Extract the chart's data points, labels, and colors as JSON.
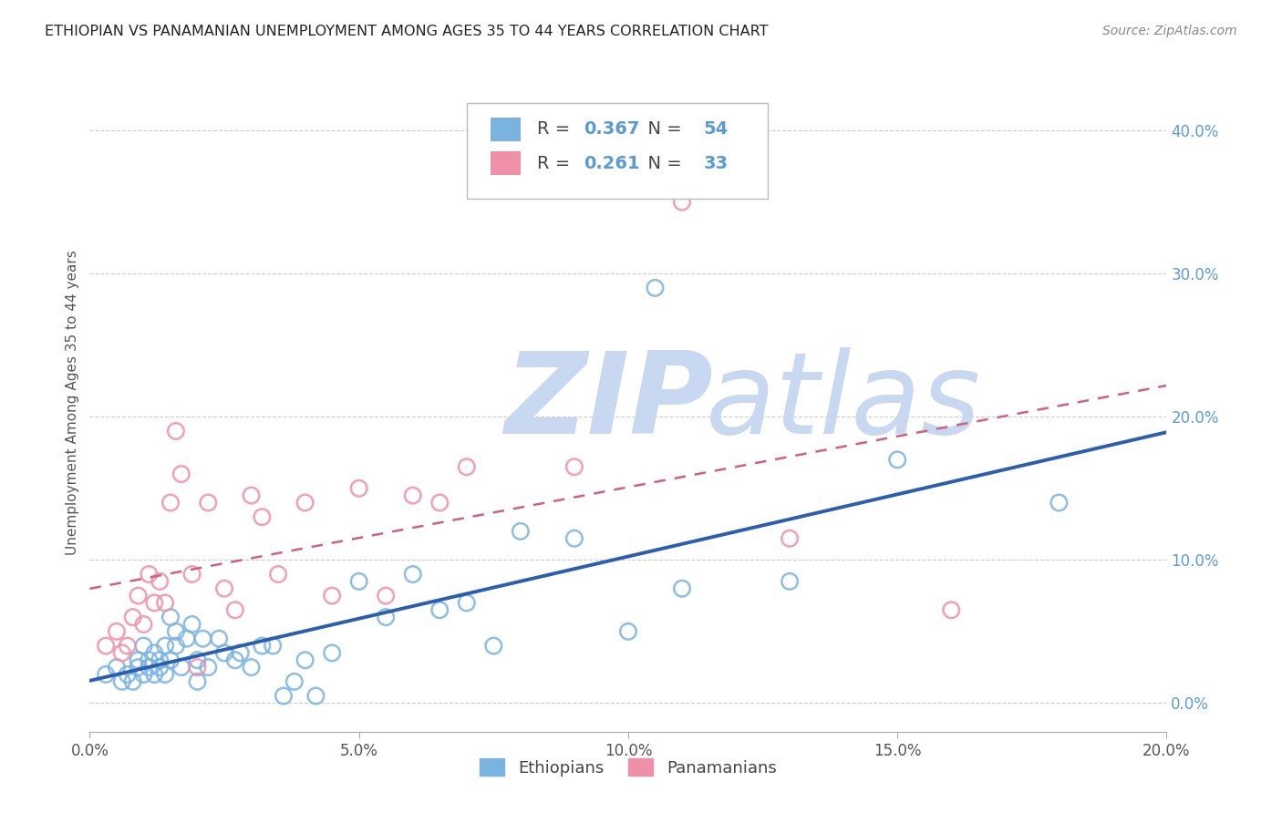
{
  "title": "ETHIOPIAN VS PANAMANIAN UNEMPLOYMENT AMONG AGES 35 TO 44 YEARS CORRELATION CHART",
  "source": "Source: ZipAtlas.com",
  "ylabel": "Unemployment Among Ages 35 to 44 years",
  "xlim": [
    0.0,
    0.2
  ],
  "ylim": [
    -0.02,
    0.44
  ],
  "right_yticks": [
    0.0,
    0.1,
    0.2,
    0.3,
    0.4
  ],
  "right_yticklabels": [
    "0.0%",
    "10.0%",
    "20.0%",
    "30.0%",
    "40.0%"
  ],
  "xticks": [
    0.0,
    0.05,
    0.1,
    0.15,
    0.2
  ],
  "xticklabels": [
    "0.0%",
    "5.0%",
    "10.0%",
    "15.0%",
    "20.0%"
  ],
  "legend_ethiopian_r": "0.367",
  "legend_ethiopian_n": "54",
  "legend_panamanian_r": "0.261",
  "legend_panamanian_n": "33",
  "ethiopian_color": "#7ab3e0",
  "panamanian_color": "#f090a8",
  "ethiopian_line_color": "#2b5fad",
  "panamanian_line_color": "#d06080",
  "watermark_zip_color": "#c8d8f0",
  "watermark_atlas_color": "#c8d8f0",
  "ethiopian_x": [
    0.003,
    0.005,
    0.006,
    0.007,
    0.008,
    0.009,
    0.009,
    0.01,
    0.01,
    0.011,
    0.011,
    0.012,
    0.012,
    0.013,
    0.013,
    0.014,
    0.014,
    0.015,
    0.015,
    0.016,
    0.016,
    0.017,
    0.018,
    0.019,
    0.02,
    0.02,
    0.021,
    0.022,
    0.024,
    0.025,
    0.027,
    0.028,
    0.03,
    0.032,
    0.034,
    0.036,
    0.038,
    0.04,
    0.042,
    0.045,
    0.05,
    0.055,
    0.06,
    0.065,
    0.07,
    0.075,
    0.08,
    0.09,
    0.1,
    0.105,
    0.11,
    0.13,
    0.15,
    0.18
  ],
  "ethiopian_y": [
    0.02,
    0.025,
    0.015,
    0.02,
    0.015,
    0.025,
    0.03,
    0.02,
    0.04,
    0.025,
    0.03,
    0.02,
    0.035,
    0.025,
    0.03,
    0.02,
    0.04,
    0.03,
    0.06,
    0.04,
    0.05,
    0.025,
    0.045,
    0.055,
    0.015,
    0.03,
    0.045,
    0.025,
    0.045,
    0.035,
    0.03,
    0.035,
    0.025,
    0.04,
    0.04,
    0.005,
    0.015,
    0.03,
    0.005,
    0.035,
    0.085,
    0.06,
    0.09,
    0.065,
    0.07,
    0.04,
    0.12,
    0.115,
    0.05,
    0.29,
    0.08,
    0.085,
    0.17,
    0.14
  ],
  "panamanian_x": [
    0.003,
    0.005,
    0.006,
    0.007,
    0.008,
    0.009,
    0.01,
    0.011,
    0.012,
    0.013,
    0.014,
    0.015,
    0.016,
    0.017,
    0.019,
    0.02,
    0.022,
    0.025,
    0.027,
    0.03,
    0.032,
    0.035,
    0.04,
    0.045,
    0.05,
    0.055,
    0.06,
    0.065,
    0.07,
    0.09,
    0.11,
    0.13,
    0.16
  ],
  "panamanian_y": [
    0.04,
    0.05,
    0.035,
    0.04,
    0.06,
    0.075,
    0.055,
    0.09,
    0.07,
    0.085,
    0.07,
    0.14,
    0.19,
    0.16,
    0.09,
    0.025,
    0.14,
    0.08,
    0.065,
    0.145,
    0.13,
    0.09,
    0.14,
    0.075,
    0.15,
    0.075,
    0.145,
    0.14,
    0.165,
    0.165,
    0.35,
    0.115,
    0.065
  ]
}
